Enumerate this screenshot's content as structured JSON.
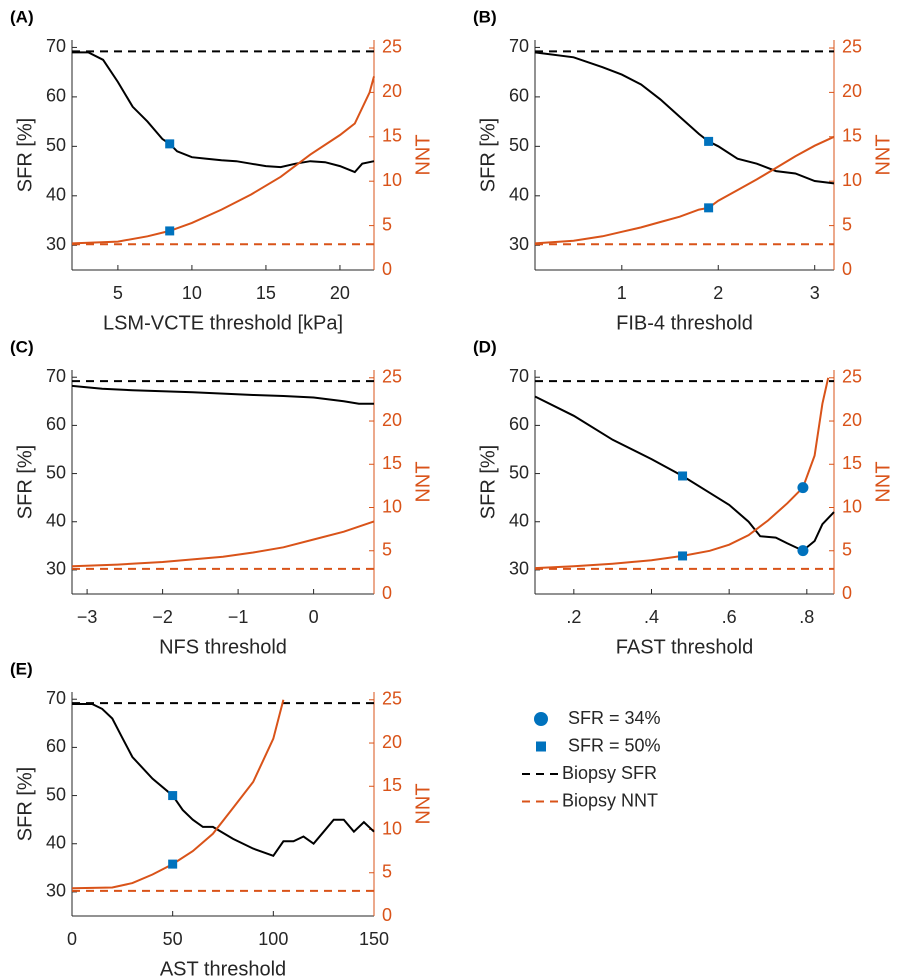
{
  "chart_data": [
    {
      "type": "line",
      "label": "(A)",
      "xlabel": "LSM-VCTE threshold [kPa]",
      "ylabel": "SFR [%]",
      "y2label": "NNT",
      "xlim": [
        1.9,
        22.3
      ],
      "xticks": [
        5,
        10,
        15,
        20
      ],
      "ylim": [
        25,
        71.5
      ],
      "yticks": [
        30,
        40,
        50,
        60,
        70
      ],
      "y2lim": [
        0,
        25.9
      ],
      "y2ticks": [
        0,
        5,
        10,
        15,
        20,
        25
      ],
      "series": [
        {
          "color": "#000000",
          "x": [
            1.9,
            3,
            4,
            5,
            6,
            7,
            8,
            8.5,
            9,
            10,
            11,
            12,
            13,
            14,
            15,
            16,
            17,
            18,
            19,
            20,
            21,
            21.5,
            22.3
          ],
          "values": [
            69,
            69,
            67.5,
            63,
            58,
            55,
            51.5,
            50.5,
            49,
            47.8,
            47.5,
            47.2,
            47,
            46.5,
            46,
            45.8,
            46.5,
            47,
            46.8,
            46,
            44.8,
            46.5,
            47
          ]
        },
        {
          "color": "#D95319",
          "axis": "y2",
          "x": [
            1.9,
            5,
            7,
            8.5,
            10,
            12,
            14,
            16,
            18,
            20,
            21,
            22,
            22.3
          ],
          "values": [
            3,
            3.2,
            3.8,
            4.4,
            5.3,
            6.8,
            8.5,
            10.5,
            13,
            15.2,
            16.5,
            20,
            21.8
          ]
        }
      ],
      "hlines": [
        {
          "value": 69.2,
          "color": "#000000"
        },
        {
          "value": 2.9,
          "axis": "y2",
          "color": "#D95319"
        }
      ],
      "markers": [
        {
          "marker": "square",
          "color": "#0072BD",
          "x": 8.5,
          "value": 50.5
        },
        {
          "marker": "square",
          "color": "#0072BD",
          "axis": "y2",
          "x": 8.5,
          "value": 4.4
        }
      ]
    },
    {
      "type": "line",
      "label": "(B)",
      "xlabel": "FIB-4 threshold",
      "ylabel": "SFR [%]",
      "y2label": "NNT",
      "xlim": [
        0.1,
        3.2
      ],
      "xticks": [
        1,
        2,
        3
      ],
      "ylim": [
        25,
        71.5
      ],
      "yticks": [
        30,
        40,
        50,
        60,
        70
      ],
      "y2lim": [
        0,
        25.9
      ],
      "y2ticks": [
        0,
        5,
        10,
        15,
        20,
        25
      ],
      "series": [
        {
          "color": "#000000",
          "x": [
            0.1,
            0.5,
            0.8,
            1,
            1.2,
            1.4,
            1.6,
            1.8,
            1.9,
            2,
            2.2,
            2.4,
            2.6,
            2.8,
            3,
            3.2
          ],
          "values": [
            69,
            68,
            66,
            64.5,
            62.5,
            59.5,
            56,
            52.5,
            51,
            50,
            47.5,
            46.5,
            45,
            44.5,
            43,
            42.5
          ]
        },
        {
          "color": "#D95319",
          "axis": "y2",
          "x": [
            0.1,
            0.5,
            0.8,
            1,
            1.2,
            1.4,
            1.6,
            1.8,
            1.9,
            2,
            2.2,
            2.4,
            2.6,
            2.8,
            3,
            3.2
          ],
          "values": [
            3,
            3.3,
            3.8,
            4.3,
            4.8,
            5.4,
            6,
            6.8,
            7,
            7.8,
            9,
            10.2,
            11.5,
            12.8,
            14,
            15
          ]
        }
      ],
      "hlines": [
        {
          "value": 69.2,
          "color": "#000000"
        },
        {
          "value": 2.9,
          "axis": "y2",
          "color": "#D95319"
        }
      ],
      "markers": [
        {
          "marker": "square",
          "color": "#0072BD",
          "x": 1.9,
          "value": 51
        },
        {
          "marker": "square",
          "color": "#0072BD",
          "axis": "y2",
          "x": 1.9,
          "value": 7
        }
      ]
    },
    {
      "type": "line",
      "label": "(C)",
      "xlabel": "NFS threshold",
      "ylabel": "SFR [%]",
      "y2label": "NNT",
      "xlim": [
        -3.2,
        0.8
      ],
      "xticks": [
        {
          "value": -3,
          "label": "−3"
        },
        {
          "value": -2,
          "label": "−2"
        },
        {
          "value": -1,
          "label": "−1"
        },
        0
      ],
      "ylim": [
        25,
        71.5
      ],
      "yticks": [
        30,
        40,
        50,
        60,
        70
      ],
      "y2lim": [
        0,
        25.9
      ],
      "y2ticks": [
        0,
        5,
        10,
        15,
        20,
        25
      ],
      "series": [
        {
          "color": "#000000",
          "x": [
            -3.2,
            -2.8,
            -2.4,
            -2,
            -1.6,
            -1.2,
            -0.8,
            -0.4,
            0,
            0.4,
            0.6,
            0.8
          ],
          "values": [
            68.2,
            67.6,
            67.3,
            67.1,
            66.9,
            66.6,
            66.3,
            66.1,
            65.8,
            65,
            64.5,
            64.5
          ]
        },
        {
          "color": "#D95319",
          "axis": "y2",
          "x": [
            -3.2,
            -2.6,
            -2,
            -1.6,
            -1.2,
            -0.8,
            -0.4,
            0,
            0.4,
            0.8
          ],
          "values": [
            3.2,
            3.4,
            3.7,
            4,
            4.3,
            4.8,
            5.4,
            6.3,
            7.2,
            8.4
          ]
        }
      ],
      "hlines": [
        {
          "value": 69.2,
          "color": "#000000"
        },
        {
          "value": 2.9,
          "axis": "y2",
          "color": "#D95319"
        }
      ],
      "markers": []
    },
    {
      "type": "line",
      "label": "(D)",
      "xlabel": "FAST threshold",
      "ylabel": "SFR [%]",
      "y2label": "NNT",
      "xlim": [
        0.1,
        0.87
      ],
      "xticks": [
        {
          "value": 0.2,
          "label": ".2"
        },
        {
          "value": 0.4,
          "label": ".4"
        },
        {
          "value": 0.6,
          "label": ".6"
        },
        {
          "value": 0.8,
          "label": ".8"
        }
      ],
      "ylim": [
        25,
        71.5
      ],
      "yticks": [
        30,
        40,
        50,
        60,
        70
      ],
      "y2lim": [
        0,
        25.9
      ],
      "y2ticks": [
        0,
        5,
        10,
        15,
        20,
        25
      ],
      "series": [
        {
          "color": "#000000",
          "x": [
            0.1,
            0.2,
            0.3,
            0.4,
            0.48,
            0.55,
            0.6,
            0.65,
            0.68,
            0.72,
            0.75,
            0.79,
            0.82,
            0.84,
            0.87
          ],
          "values": [
            66,
            62,
            57,
            53,
            49.5,
            46,
            43.5,
            40,
            37,
            36.7,
            35.5,
            34,
            36,
            39.5,
            42
          ]
        },
        {
          "color": "#D95319",
          "axis": "y2",
          "x": [
            0.1,
            0.2,
            0.3,
            0.4,
            0.48,
            0.55,
            0.6,
            0.65,
            0.7,
            0.75,
            0.79,
            0.82,
            0.84,
            0.855
          ],
          "values": [
            3,
            3.2,
            3.5,
            3.9,
            4.4,
            5,
            5.7,
            6.8,
            8.5,
            10.5,
            12.3,
            16,
            22,
            25
          ]
        }
      ],
      "hlines": [
        {
          "value": 69.2,
          "color": "#000000"
        },
        {
          "value": 2.9,
          "axis": "y2",
          "color": "#D95319"
        }
      ],
      "markers": [
        {
          "marker": "square",
          "color": "#0072BD",
          "x": 0.48,
          "value": 49.5
        },
        {
          "marker": "square",
          "color": "#0072BD",
          "axis": "y2",
          "x": 0.48,
          "value": 4.4
        },
        {
          "marker": "circle",
          "color": "#0072BD",
          "x": 0.79,
          "value": 34
        },
        {
          "marker": "circle",
          "color": "#0072BD",
          "axis": "y2",
          "x": 0.79,
          "value": 12.3
        }
      ]
    },
    {
      "type": "line",
      "label": "(E)",
      "xlabel": "AST threshold",
      "ylabel": "SFR [%]",
      "y2label": "NNT",
      "xlim": [
        0,
        150
      ],
      "xticks": [
        0,
        50,
        100,
        150
      ],
      "ylim": [
        25,
        71.5
      ],
      "yticks": [
        30,
        40,
        50,
        60,
        70
      ],
      "y2lim": [
        0,
        25.9
      ],
      "y2ticks": [
        0,
        5,
        10,
        15,
        20,
        25
      ],
      "series": [
        {
          "color": "#000000",
          "x": [
            0,
            10,
            15,
            20,
            25,
            30,
            40,
            50,
            55,
            60,
            65,
            70,
            80,
            90,
            100,
            105,
            110,
            115,
            120,
            125,
            130,
            135,
            140,
            145,
            150
          ],
          "values": [
            69,
            69,
            68,
            66,
            62,
            58,
            53.5,
            50,
            47,
            45,
            43.5,
            43.5,
            41,
            39,
            37.5,
            40.5,
            40.5,
            41.5,
            40,
            42.5,
            45,
            45,
            42.5,
            44.5,
            42.5
          ]
        },
        {
          "color": "#D95319",
          "axis": "y2",
          "x": [
            0,
            20,
            30,
            40,
            50,
            60,
            70,
            80,
            90,
            100,
            105
          ],
          "values": [
            3.2,
            3.3,
            3.8,
            4.8,
            6,
            7.5,
            9.5,
            12.5,
            15.5,
            20.5,
            25
          ]
        }
      ],
      "hlines": [
        {
          "value": 69.2,
          "color": "#000000"
        },
        {
          "value": 2.9,
          "axis": "y2",
          "color": "#D95319"
        }
      ],
      "markers": [
        {
          "marker": "square",
          "color": "#0072BD",
          "x": 50,
          "value": 50
        },
        {
          "marker": "square",
          "color": "#0072BD",
          "axis": "y2",
          "x": 50,
          "value": 6
        }
      ]
    }
  ],
  "legend": [
    {
      "label": "SFR = 34%",
      "marker": "circle",
      "color": "#0072BD"
    },
    {
      "label": "SFR = 50%",
      "marker": "square",
      "color": "#0072BD"
    },
    {
      "label": "Biopsy SFR",
      "dash": true,
      "color": "#000000"
    },
    {
      "label": "Biopsy NNT",
      "dash": true,
      "color": "#D95319"
    }
  ]
}
